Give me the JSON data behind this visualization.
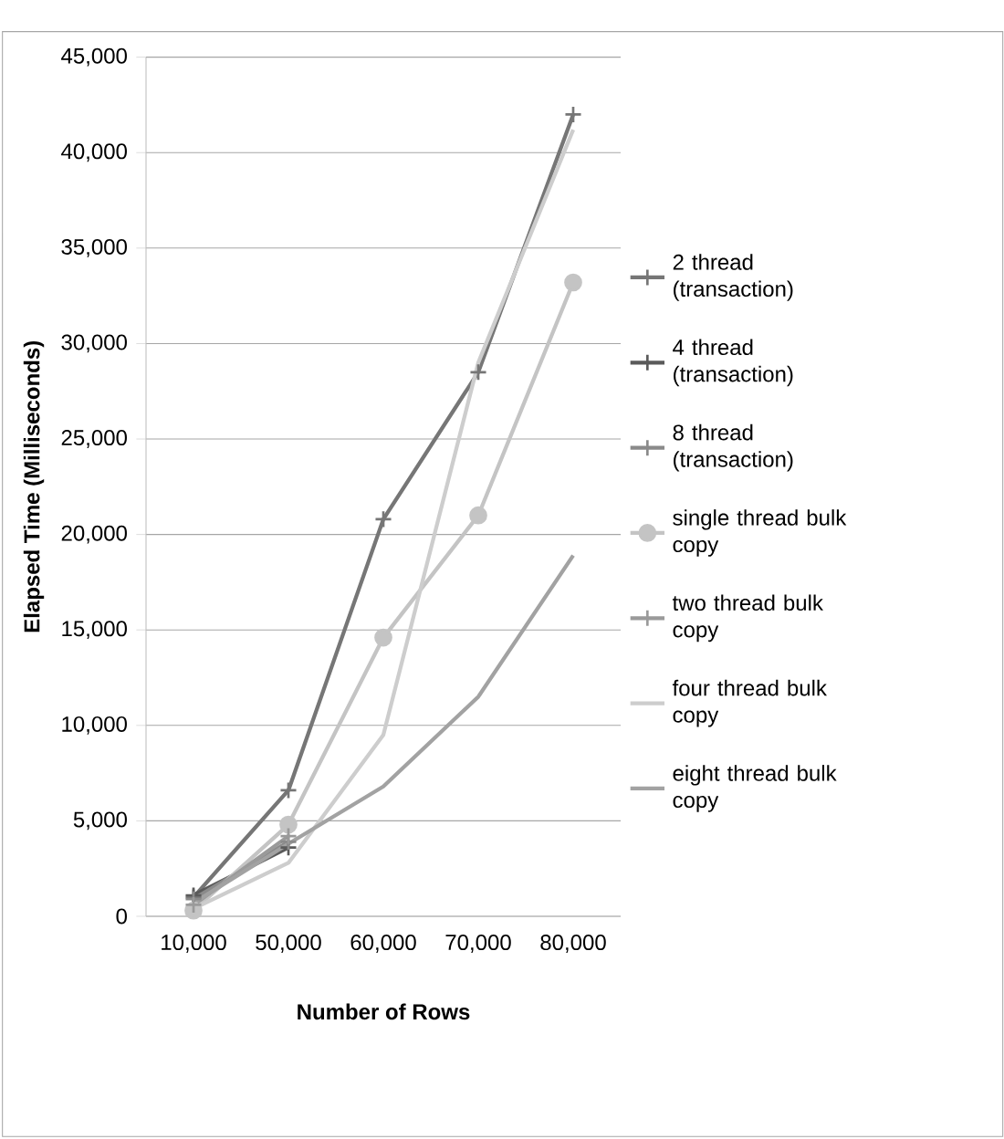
{
  "chart_data": {
    "type": "line",
    "xlabel": "Number of Rows",
    "ylabel": "Elapsed Time (Milliseconds)",
    "categories": [
      "10,000",
      "50,000",
      "60,000",
      "70,000",
      "80,000"
    ],
    "ylim": [
      0,
      45000
    ],
    "yticks": [
      0,
      {
        "value": 5000,
        "label": "5,000"
      },
      {
        "value": 10000,
        "label": "10,000"
      },
      {
        "value": 15000,
        "label": "15,000"
      },
      {
        "value": 20000,
        "label": "20,000"
      },
      {
        "value": 25000,
        "label": "25,000"
      },
      {
        "value": 30000,
        "label": "30,000"
      },
      {
        "value": 35000,
        "label": "35,000"
      },
      {
        "value": 40000,
        "label": "40,000"
      },
      {
        "value": 45000,
        "label": "45,000"
      }
    ],
    "grid": "y",
    "legend": "right",
    "series": [
      {
        "name": "2 thread (transaction)",
        "color": "#767676",
        "marker": "cross",
        "values": [
          1000,
          6600,
          20800,
          28500,
          42000
        ]
      },
      {
        "name": "4 thread (transaction)",
        "color": "#5a5a5a",
        "marker": "cross",
        "values": [
          1100,
          3600,
          null,
          null,
          null
        ]
      },
      {
        "name": "8 thread (transaction)",
        "color": "#8a8a8a",
        "marker": "cross",
        "values": [
          900,
          3900,
          null,
          null,
          null
        ]
      },
      {
        "name": "single thread bulk copy",
        "color": "#c4c4c4",
        "marker": "circle",
        "values": [
          300,
          4800,
          14600,
          21000,
          33200
        ]
      },
      {
        "name": "two thread bulk copy",
        "color": "#9a9a9a",
        "marker": "cross",
        "values": [
          600,
          4200,
          null,
          null,
          null
        ]
      },
      {
        "name": "four thread bulk copy",
        "color": "#cdcdcd",
        "marker": "none",
        "values": [
          400,
          2800,
          9500,
          29000,
          41200
        ]
      },
      {
        "name": "eight thread bulk copy",
        "color": "#a2a2a2",
        "marker": "none",
        "values": [
          700,
          3800,
          6800,
          11500,
          18900
        ]
      }
    ]
  }
}
